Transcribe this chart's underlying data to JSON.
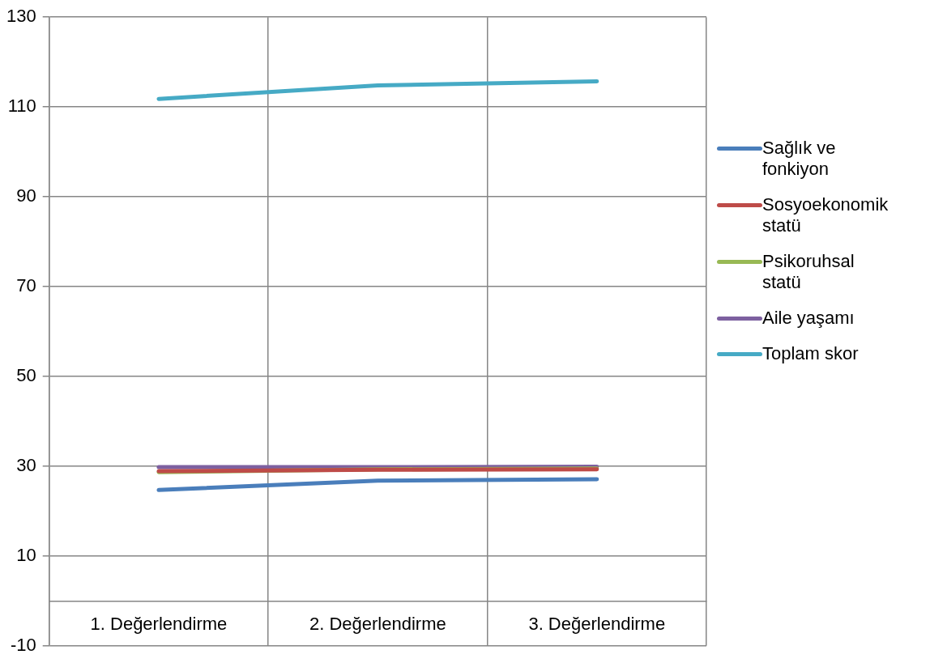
{
  "chart_data": {
    "type": "line",
    "categories": [
      "1. Değerlendirme",
      "2. Değerlendirme",
      "3. Değerlendirme"
    ],
    "series": [
      {
        "name": "Sağlık ve fonkiyon",
        "color": "#4a7ebb",
        "values": [
          24.7,
          26.8,
          27.1
        ]
      },
      {
        "name": "Sosyoekonomik statü",
        "color": "#be4b48",
        "values": [
          28.9,
          29.2,
          29.3
        ]
      },
      {
        "name": "Psikoruhsal statü",
        "color": "#98b954",
        "values": [
          28.7,
          29.3,
          29.5
        ]
      },
      {
        "name": "Aile yaşamı",
        "color": "#7d60a0",
        "values": [
          29.8,
          29.8,
          29.9
        ]
      },
      {
        "name": "Toplam skor",
        "color": "#46aac5",
        "values": [
          111.8,
          114.8,
          115.7
        ]
      }
    ],
    "ylim": [
      -10,
      130
    ],
    "yticks": [
      -10,
      10,
      30,
      50,
      70,
      90,
      110,
      130
    ],
    "grid": true,
    "legend": "right",
    "marker": "none",
    "line_style": "solid"
  }
}
